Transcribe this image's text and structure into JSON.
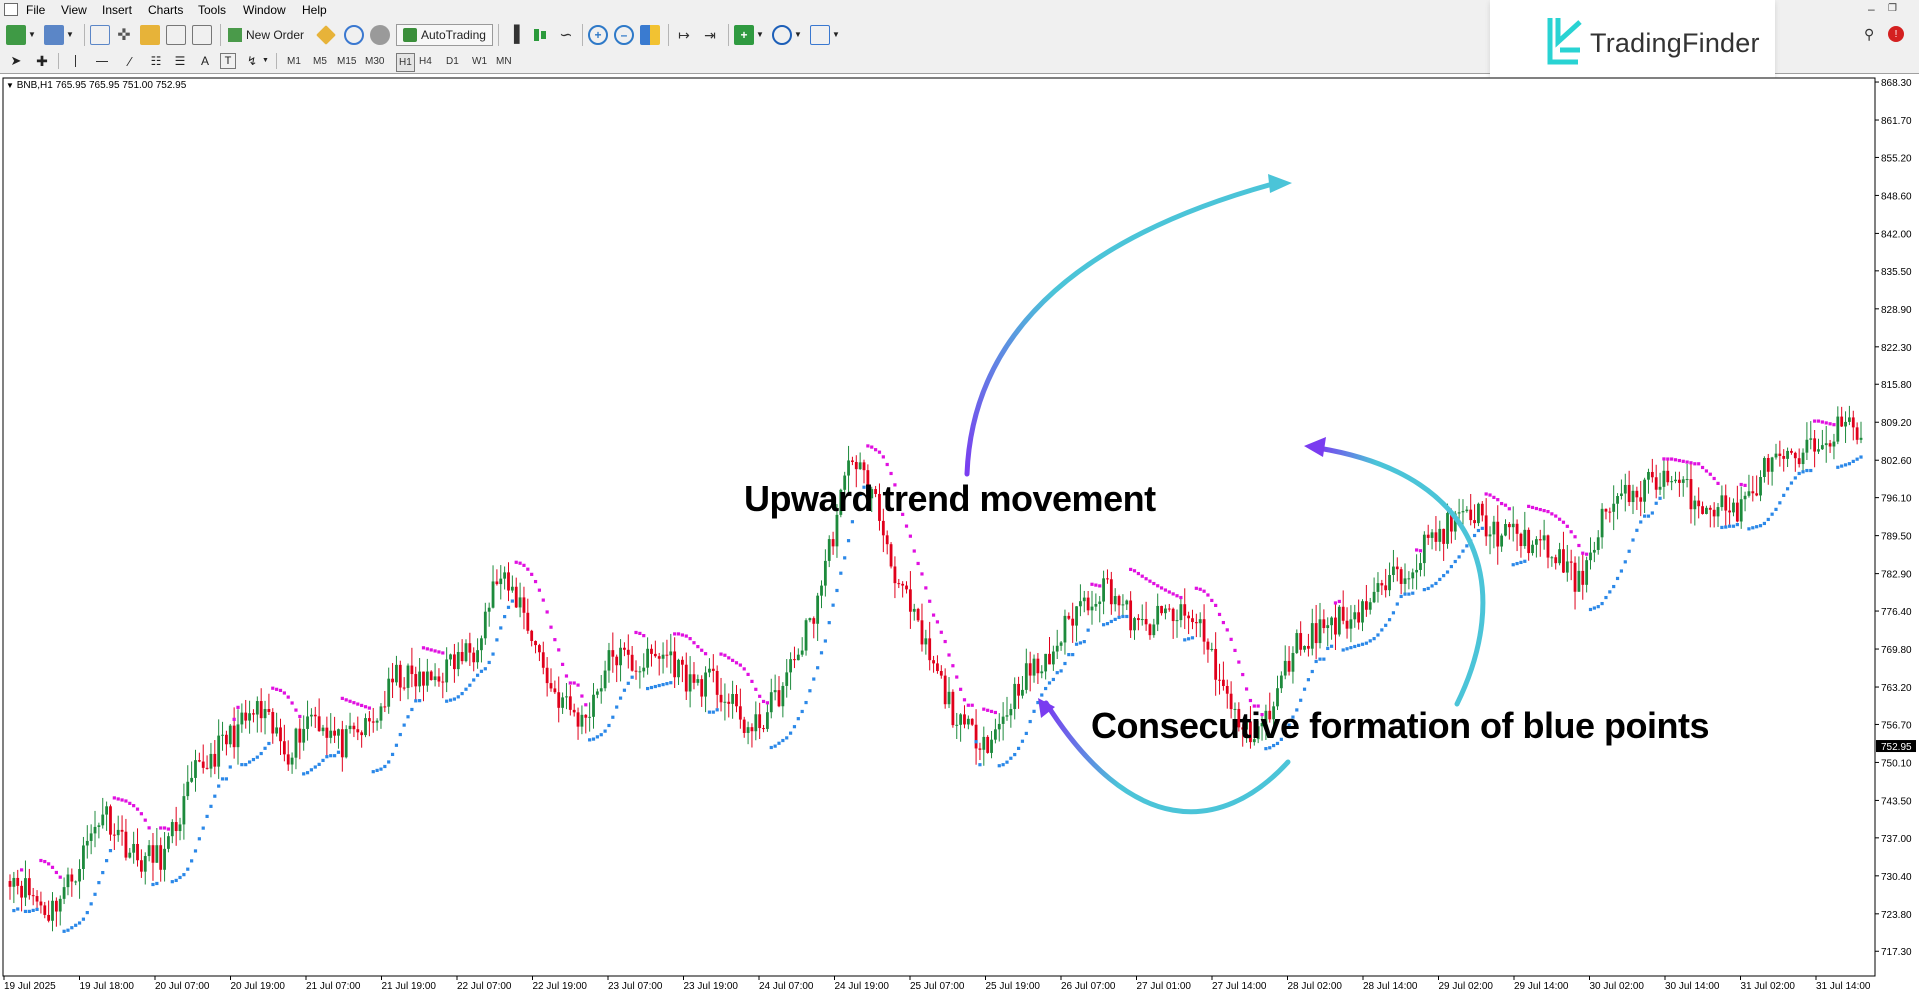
{
  "menu": {
    "items": [
      "File",
      "View",
      "Insert",
      "Charts",
      "Tools",
      "Window",
      "Help"
    ]
  },
  "toolbar": {
    "new_order": "New Order",
    "autotrading": "AutoTrading"
  },
  "timeframes": [
    "M1",
    "M5",
    "M15",
    "M30",
    "H1",
    "H4",
    "D1",
    "W1",
    "MN"
  ],
  "logo": {
    "text": "TradingFinder"
  },
  "chart_info": "BNB,H1  765.95 765.95 751.00 752.95",
  "annotations": {
    "upward": "Upward trend movement",
    "blue_points": "Consecutive formation of blue points"
  },
  "colors": {
    "bull": "#1d8a3c",
    "bear": "#e0001b",
    "sar_up": "#2b88e8",
    "sar_down": "#e010e0",
    "arrow_start": "#7a3cf0",
    "arrow_end": "#4bc4d8"
  },
  "icons": [
    "search-icon",
    "close-icon",
    "zoom-in-icon",
    "zoom-out-icon",
    "crosshair-icon",
    "cursor-icon"
  ],
  "chart_data": {
    "type": "candlestick",
    "symbol": "BNB",
    "timeframe": "H1",
    "ylim": [
      713.0,
      869.0
    ],
    "current_price": "752.95",
    "y_ticks": [
      "868.30",
      "861.70",
      "855.20",
      "848.60",
      "842.00",
      "835.50",
      "828.90",
      "822.30",
      "815.80",
      "809.20",
      "802.60",
      "796.10",
      "789.50",
      "782.90",
      "776.40",
      "769.80",
      "763.20",
      "756.70",
      "750.10",
      "743.50",
      "737.00",
      "730.40",
      "723.80",
      "717.30"
    ],
    "x_labels": [
      "19 Jul 2025",
      "19 Jul 18:00",
      "20 Jul 07:00",
      "20 Jul 19:00",
      "21 Jul 07:00",
      "21 Jul 19:00",
      "22 Jul 07:00",
      "22 Jul 19:00",
      "23 Jul 07:00",
      "23 Jul 19:00",
      "24 Jul 07:00",
      "24 Jul 19:00",
      "25 Jul 07:00",
      "25 Jul 19:00",
      "26 Jul 07:00",
      "27 Jul 01:00",
      "27 Jul 14:00",
      "28 Jul 02:00",
      "28 Jul 14:00",
      "29 Jul 02:00",
      "29 Jul 14:00",
      "30 Jul 02:00",
      "30 Jul 14:00",
      "31 Jul 02:00",
      "31 Jul 14:00"
    ],
    "waypoints": [
      [
        0,
        731
      ],
      [
        10,
        724
      ],
      [
        16,
        730
      ],
      [
        24,
        742
      ],
      [
        33,
        733
      ],
      [
        40,
        734
      ],
      [
        48,
        748
      ],
      [
        56,
        754
      ],
      [
        64,
        759
      ],
      [
        72,
        752
      ],
      [
        78,
        759
      ],
      [
        86,
        753
      ],
      [
        94,
        757
      ],
      [
        100,
        765
      ],
      [
        108,
        764
      ],
      [
        114,
        767
      ],
      [
        120,
        770
      ],
      [
        126,
        782
      ],
      [
        132,
        778
      ],
      [
        140,
        763
      ],
      [
        148,
        757
      ],
      [
        156,
        769
      ],
      [
        162,
        767
      ],
      [
        170,
        769
      ],
      [
        176,
        764
      ],
      [
        182,
        764
      ],
      [
        192,
        755
      ],
      [
        200,
        763
      ],
      [
        208,
        776
      ],
      [
        218,
        804
      ],
      [
        224,
        795
      ],
      [
        230,
        781
      ],
      [
        238,
        768
      ],
      [
        246,
        756
      ],
      [
        254,
        754
      ],
      [
        262,
        765
      ],
      [
        268,
        767
      ],
      [
        276,
        777
      ],
      [
        284,
        781
      ],
      [
        292,
        773
      ],
      [
        300,
        776
      ],
      [
        308,
        774
      ],
      [
        316,
        759
      ],
      [
        320,
        755
      ],
      [
        326,
        758
      ],
      [
        332,
        770
      ],
      [
        340,
        774
      ],
      [
        348,
        776
      ],
      [
        360,
        783
      ],
      [
        368,
        789
      ],
      [
        374,
        792
      ],
      [
        380,
        793
      ],
      [
        384,
        790
      ],
      [
        392,
        789
      ],
      [
        400,
        786
      ],
      [
        406,
        781
      ],
      [
        412,
        793
      ],
      [
        420,
        797
      ],
      [
        428,
        800
      ],
      [
        438,
        795
      ],
      [
        448,
        794
      ],
      [
        455,
        802
      ],
      [
        462,
        802
      ],
      [
        472,
        808
      ]
    ]
  }
}
